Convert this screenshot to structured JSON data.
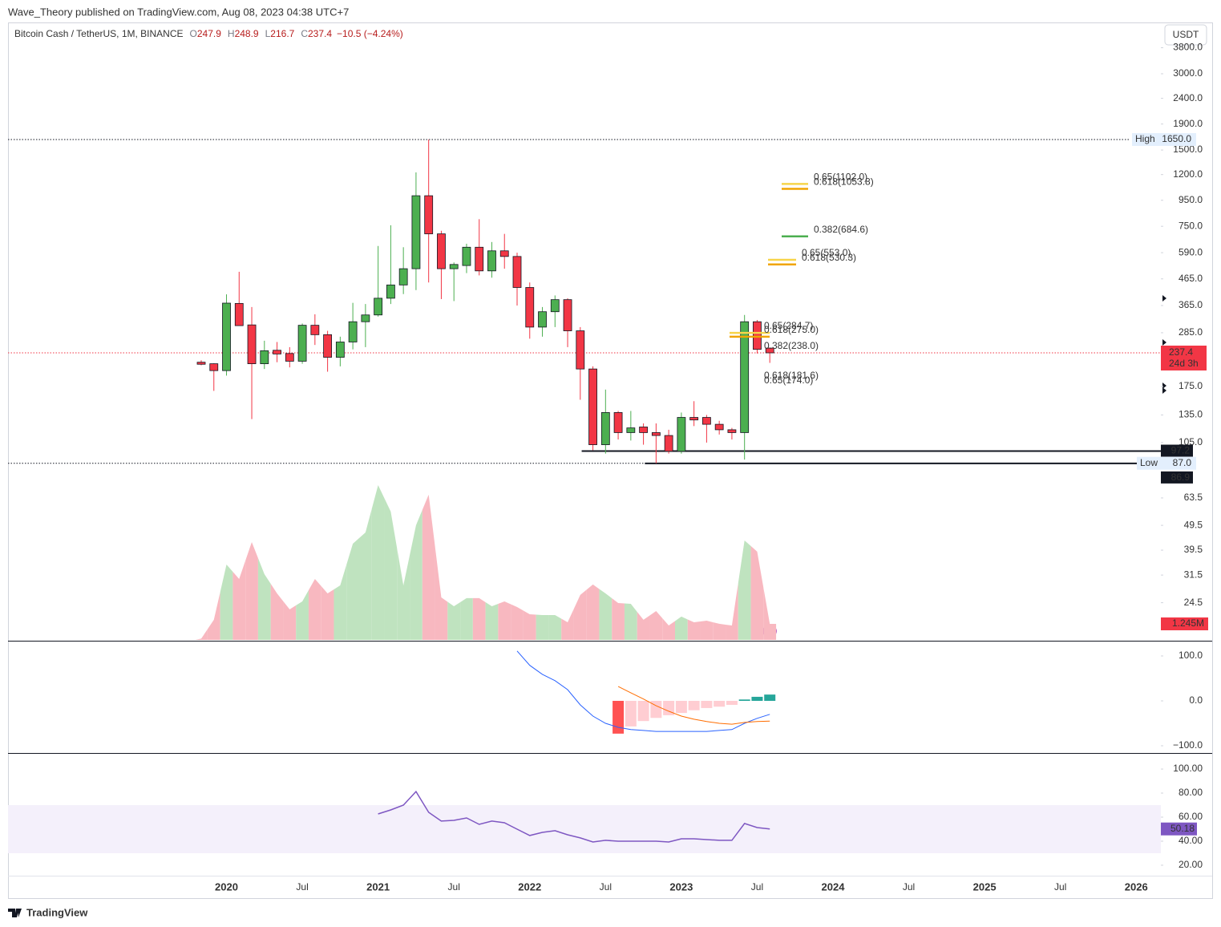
{
  "header": {
    "text": "Wave_Theory published on TradingView.com, Aug 08, 2023 04:38 UTC+7"
  },
  "legend": {
    "symbol": "Bitcoin Cash / TetherUS, 1M, BINANCE",
    "items": [
      {
        "key": "O",
        "value": "247.9"
      },
      {
        "key": "H",
        "value": "248.9"
      },
      {
        "key": "L",
        "value": "216.7"
      },
      {
        "key": "C",
        "value": "237.4"
      }
    ],
    "change": "−10.5 (−4.24%)"
  },
  "currency_button": "USDT",
  "price_axis": {
    "log": true,
    "ylim": [
      17.47,
      4782
    ],
    "ticks": [
      {
        "value": 3800,
        "label": "3800.0"
      },
      {
        "value": 3000,
        "label": "3000.0"
      },
      {
        "value": 2400,
        "label": "2400.0"
      },
      {
        "value": 1900,
        "label": "1900.0"
      },
      {
        "value": 1500,
        "label": "1500.0"
      },
      {
        "value": 1200,
        "label": "1200.0"
      },
      {
        "value": 950,
        "label": "950.0"
      },
      {
        "value": 750,
        "label": "750.0"
      },
      {
        "value": 590,
        "label": "590.0"
      },
      {
        "value": 465,
        "label": "465.0"
      },
      {
        "value": 365,
        "label": "365.0"
      },
      {
        "value": 285,
        "label": "285.0"
      },
      {
        "value": 175,
        "label": "175.0"
      },
      {
        "value": 135,
        "label": "135.0"
      },
      {
        "value": 105,
        "label": "105.0"
      },
      63.5,
      49.5,
      39.5,
      31.5,
      24.5
    ]
  },
  "chart": {
    "type": "candlestick",
    "up_color": "#4caf50",
    "down_color": "#f23645",
    "candles": [
      {
        "o": 218,
        "h": 222,
        "l": 212,
        "c": 214
      },
      {
        "o": 215,
        "h": 216,
        "l": 168,
        "c": 202
      },
      {
        "o": 202,
        "h": 404,
        "l": 193,
        "c": 373
      },
      {
        "o": 372,
        "h": 496,
        "l": 305,
        "c": 304
      },
      {
        "o": 306,
        "h": 360,
        "l": 130,
        "c": 215
      },
      {
        "o": 215,
        "h": 265,
        "l": 205,
        "c": 242
      },
      {
        "o": 243,
        "h": 262,
        "l": 218,
        "c": 235
      },
      {
        "o": 236,
        "h": 250,
        "l": 208,
        "c": 220
      },
      {
        "o": 220,
        "h": 310,
        "l": 215,
        "c": 305
      },
      {
        "o": 305,
        "h": 337,
        "l": 255,
        "c": 280
      },
      {
        "o": 280,
        "h": 290,
        "l": 200,
        "c": 228
      },
      {
        "o": 228,
        "h": 275,
        "l": 210,
        "c": 262
      },
      {
        "o": 262,
        "h": 374,
        "l": 245,
        "c": 315
      },
      {
        "o": 315,
        "h": 370,
        "l": 250,
        "c": 335
      },
      {
        "o": 335,
        "h": 627,
        "l": 330,
        "c": 390
      },
      {
        "o": 390,
        "h": 757,
        "l": 370,
        "c": 440
      },
      {
        "o": 440,
        "h": 620,
        "l": 405,
        "c": 510
      },
      {
        "o": 510,
        "h": 1224,
        "l": 420,
        "c": 990
      },
      {
        "o": 990,
        "h": 1650,
        "l": 450,
        "c": 700
      },
      {
        "o": 700,
        "h": 720,
        "l": 387,
        "c": 510
      },
      {
        "o": 510,
        "h": 540,
        "l": 380,
        "c": 530
      },
      {
        "o": 525,
        "h": 640,
        "l": 490,
        "c": 620
      },
      {
        "o": 620,
        "h": 800,
        "l": 480,
        "c": 500
      },
      {
        "o": 500,
        "h": 650,
        "l": 470,
        "c": 600
      },
      {
        "o": 600,
        "h": 700,
        "l": 510,
        "c": 570
      },
      {
        "o": 570,
        "h": 590,
        "l": 365,
        "c": 430
      },
      {
        "o": 430,
        "h": 450,
        "l": 270,
        "c": 300
      },
      {
        "o": 300,
        "h": 360,
        "l": 275,
        "c": 345
      },
      {
        "o": 345,
        "h": 400,
        "l": 300,
        "c": 385
      },
      {
        "o": 385,
        "h": 390,
        "l": 250,
        "c": 290
      },
      {
        "o": 290,
        "h": 300,
        "l": 155,
        "c": 205
      },
      {
        "o": 205,
        "h": 210,
        "l": 98,
        "c": 103
      },
      {
        "o": 103,
        "h": 170,
        "l": 95,
        "c": 138
      },
      {
        "o": 138,
        "h": 140,
        "l": 108,
        "c": 115
      },
      {
        "o": 115,
        "h": 140,
        "l": 107,
        "c": 120
      },
      {
        "o": 121,
        "h": 125,
        "l": 103,
        "c": 115
      },
      {
        "o": 115,
        "h": 125,
        "l": 87,
        "c": 112
      },
      {
        "o": 112,
        "h": 118,
        "l": 95,
        "c": 97
      },
      {
        "o": 97,
        "h": 138,
        "l": 95,
        "c": 132
      },
      {
        "o": 132,
        "h": 153,
        "l": 122,
        "c": 129
      },
      {
        "o": 132,
        "h": 135,
        "l": 105,
        "c": 124
      },
      {
        "o": 124,
        "h": 128,
        "l": 113,
        "c": 118
      },
      {
        "o": 118,
        "h": 120,
        "l": 108,
        "c": 115
      },
      {
        "o": 115,
        "h": 335,
        "l": 90,
        "c": 315
      },
      {
        "o": 315,
        "h": 320,
        "l": 236,
        "c": 245
      },
      {
        "o": 247.9,
        "h": 248.9,
        "l": 216.7,
        "c": 237.4
      }
    ],
    "current_price": {
      "value": 237.4,
      "countdown": "24d 3h",
      "color": "#f23645"
    },
    "high": {
      "text": "High",
      "value": 1650,
      "value_label": "1650.0"
    },
    "low": {
      "text": "Low",
      "value": 87,
      "value_label": "87.0"
    },
    "levels": [
      97.2,
      86.9
    ]
  },
  "fib_groups": [
    {
      "levels": [
        {
          "text": "0.65(1102.0)",
          "price": 1102.0,
          "color": "#f7d54a",
          "line": true
        },
        {
          "text": "0.618(1053.8)",
          "price": 1053.8,
          "color": "#f0a400",
          "line": true
        }
      ]
    },
    {
      "levels": [
        {
          "text": "0.382(684.6)",
          "price": 684.6,
          "color": "#4caf50",
          "line": true
        }
      ]
    },
    {
      "levels": [
        {
          "text": "0.65(553.0)",
          "price": 553.0,
          "color": "#f7d54a",
          "line": true
        },
        {
          "text": "0.618(530.3)",
          "price": 530.3,
          "color": "#f0a400",
          "line": true
        }
      ]
    },
    {
      "levels": [
        {
          "text": "0.65(284.7)",
          "price": 284.7,
          "color": "#f7d54a",
          "line": true
        },
        {
          "text": "0.618(275.0)",
          "price": 275.0,
          "color": "#f0a400",
          "line": true
        },
        {
          "text": "0.382(238.0)",
          "price": 238.0,
          "color": "#4caf50",
          "line": false
        }
      ]
    },
    {
      "levels": [
        {
          "text": "0.618(181.6)",
          "price": 181.6,
          "color": "#f0a400",
          "line": false
        },
        {
          "text": "0.65(174.0)",
          "price": 174.0,
          "color": "#f7d54a",
          "line": false
        }
      ]
    }
  ],
  "volume": {
    "up_color": "#bfe3bf",
    "down_color": "#f8b8c0",
    "badge_color": "#f23645",
    "values": [
      0.1,
      1.56,
      5.85,
      4.73,
      7.59,
      5.1,
      3.61,
      2.37,
      2.99,
      4.73,
      3.61,
      4.23,
      7.47,
      8.34,
      12.01,
      9.96,
      4.23,
      8.9,
      11.27,
      3.3,
      2.61,
      3.24,
      3.24,
      2.61,
      2.99,
      2.55,
      1.99,
      1.93,
      1.93,
      1.37,
      3.49,
      4.3,
      3.61,
      2.86,
      2.8,
      1.56,
      2.24,
      1.12,
      1.81,
      1.37,
      1.49,
      1.25,
      1.12,
      7.72,
      6.85,
      1.245
    ],
    "last_value_label": "1.245M"
  },
  "macd": {
    "ylim": [
      -114.3,
      132.1
    ],
    "ticks": [
      {
        "value": 100,
        "label": "100.0"
      },
      {
        "value": 0,
        "label": "0.0"
      },
      {
        "value": -100,
        "label": "−100.0"
      }
    ],
    "macd_color": "#2962ff",
    "signal_color": "#ff6d00",
    "hist_colors": {
      "neg_falling": "#ff5252",
      "neg_rising": "#ffcdd2",
      "pos_rising": "#26a69a",
      "pos_falling": "#b2dfdb"
    },
    "macd": [
      null,
      null,
      null,
      null,
      null,
      null,
      null,
      null,
      null,
      null,
      null,
      null,
      null,
      null,
      null,
      null,
      null,
      null,
      null,
      null,
      null,
      null,
      null,
      null,
      null,
      111,
      79,
      59,
      45,
      25,
      -9,
      -34,
      -50,
      -59,
      -64,
      -66,
      -68,
      -68,
      -68,
      -68,
      -68,
      -66,
      -64,
      -50,
      -39,
      -30
    ],
    "signal": [
      null,
      null,
      null,
      null,
      null,
      null,
      null,
      null,
      null,
      null,
      null,
      null,
      null,
      null,
      null,
      null,
      null,
      null,
      null,
      null,
      null,
      null,
      null,
      null,
      null,
      null,
      null,
      null,
      null,
      null,
      null,
      null,
      null,
      32,
      18,
      4,
      -11,
      -23,
      -34,
      -41,
      -46,
      -50,
      -52,
      -48,
      -46,
      -45
    ],
    "histogram": [
      null,
      null,
      null,
      null,
      null,
      null,
      null,
      null,
      null,
      null,
      null,
      null,
      null,
      null,
      null,
      null,
      null,
      null,
      null,
      null,
      null,
      null,
      null,
      null,
      null,
      null,
      null,
      null,
      null,
      null,
      null,
      null,
      null,
      -73,
      -57,
      -45,
      -38,
      -32,
      -27,
      -21,
      -16,
      -13,
      -9,
      3,
      9,
      14
    ]
  },
  "rsi": {
    "ylim": [
      11.3,
      112.7
    ],
    "band": [
      30,
      70
    ],
    "band_color": "#f4f0fb",
    "color": "#7e57c2",
    "ticks": [
      {
        "value": 100,
        "label": "100.00"
      },
      {
        "value": 80,
        "label": "80.00"
      },
      {
        "value": 60,
        "label": "60.00"
      },
      {
        "value": 40,
        "label": "40.00"
      },
      {
        "value": 20,
        "label": "20.00"
      }
    ],
    "values": [
      null,
      null,
      null,
      null,
      null,
      null,
      null,
      null,
      null,
      null,
      null,
      null,
      null,
      null,
      62.7,
      66,
      70,
      81.3,
      64,
      56.7,
      57.3,
      59.3,
      54,
      56.7,
      55.3,
      50,
      44.7,
      47.3,
      48.7,
      45.3,
      42.7,
      39.3,
      40.7,
      40,
      40,
      40,
      40,
      39.3,
      42,
      42,
      41.3,
      40.7,
      40.7,
      54.7,
      51.3,
      50.18
    ]
  },
  "time_axis": [
    "2020",
    "Jul",
    "2021",
    "Jul",
    "2022",
    "Jul",
    "2023",
    "Jul",
    "2024",
    "Jul",
    "2025",
    "Jul",
    "2026"
  ],
  "footer": {
    "brand": "TradingView"
  }
}
